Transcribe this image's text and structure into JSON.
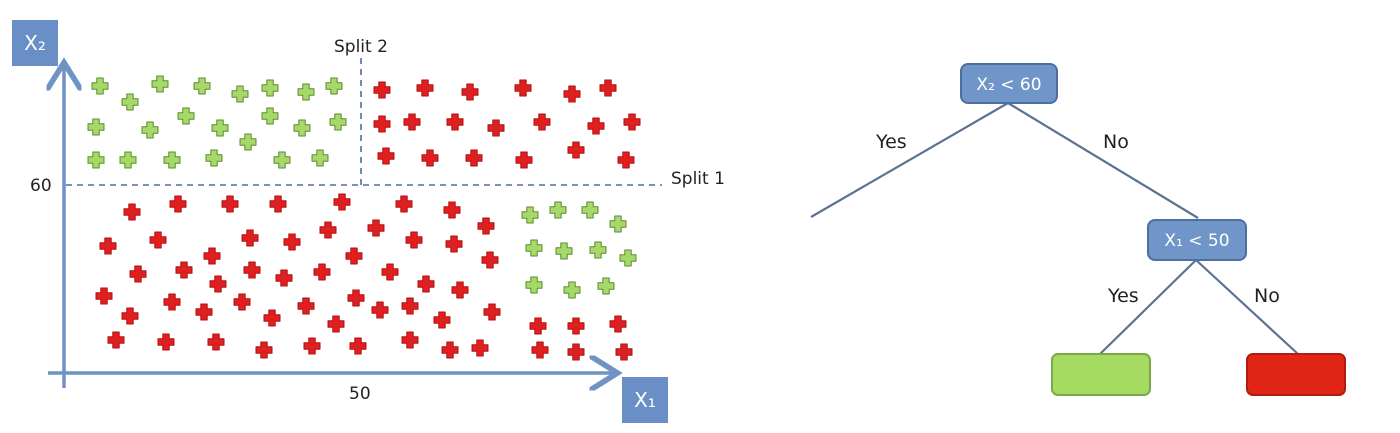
{
  "scatter": {
    "x_axis_label": "X₁",
    "y_axis_label": "X₂",
    "split1": {
      "label": "Split 1",
      "tick_label": "60"
    },
    "split2": {
      "label": "Split 2",
      "tick_label": "50"
    },
    "marker_shape": "plus",
    "colors": {
      "green_fill": "#a6d96a",
      "green_stroke": "#5a8c2a",
      "red_fill": "#e02020",
      "red_stroke": "#b01010",
      "axis": "#6f93c4",
      "axis_label_box": "#6a8fc6",
      "dashed_line": "#4a6fa5"
    },
    "regions": [
      {
        "name": "top-left",
        "class": "green"
      },
      {
        "name": "top-right",
        "class": "red"
      },
      {
        "name": "bottom-left",
        "class": "red"
      },
      {
        "name": "bottom-right",
        "class": "green"
      }
    ]
  },
  "tree": {
    "root_condition": "X₂ < 60",
    "root_yes_label": "Yes",
    "root_no_label": "No",
    "child_condition": "X₁ < 50",
    "child_yes_label": "Yes",
    "child_no_label": "No",
    "colors": {
      "node_fill": "#7095c8",
      "node_stroke": "#4e6e9e",
      "node_text": "#ffffff",
      "branch": "#5b7290",
      "leaf_green": "#a6db62",
      "leaf_green_stroke": "#7aa94a",
      "leaf_red": "#e02614",
      "leaf_red_stroke": "#b01c10"
    },
    "leaves": [
      {
        "name": "leaf-yes",
        "class": "green"
      },
      {
        "name": "leaf-no",
        "class": "red"
      }
    ]
  }
}
